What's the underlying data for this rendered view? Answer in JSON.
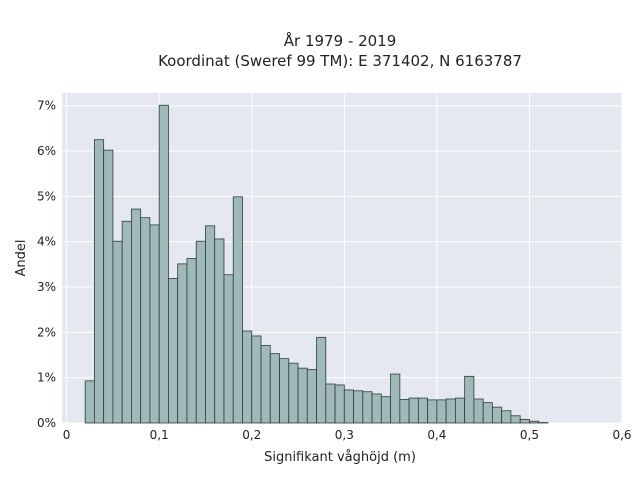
{
  "chart_data": {
    "type": "bar",
    "title_line1": "År 1979 - 2019",
    "title_line2": "Koordinat (Sweref 99 TM): E 371402, N 6163787",
    "xlabel": "Signifikant våghöjd (m)",
    "ylabel": "Andel",
    "xlim": [
      -0.005,
      0.6
    ],
    "ylim": [
      0,
      0.0728
    ],
    "grid": true,
    "bin_width": 0.01,
    "bin_start": 0.02,
    "values": [
      0.0093,
      0.0625,
      0.0602,
      0.0401,
      0.0445,
      0.0472,
      0.0453,
      0.0437,
      0.0701,
      0.0319,
      0.0351,
      0.0363,
      0.0401,
      0.0435,
      0.0406,
      0.0327,
      0.0499,
      0.0203,
      0.0192,
      0.0171,
      0.0153,
      0.0142,
      0.0132,
      0.0121,
      0.0118,
      0.0189,
      0.0086,
      0.0084,
      0.0073,
      0.0071,
      0.0069,
      0.0064,
      0.0058,
      0.0108,
      0.0052,
      0.0055,
      0.0055,
      0.0051,
      0.0051,
      0.0053,
      0.0055,
      0.0103,
      0.0053,
      0.0045,
      0.0035,
      0.0027,
      0.0016,
      0.0008,
      0.0004,
      0.0001
    ],
    "x_ticks": [
      {
        "value": 0,
        "label": "0"
      },
      {
        "value": 0.1,
        "label": "0,1"
      },
      {
        "value": 0.2,
        "label": "0,2"
      },
      {
        "value": 0.3,
        "label": "0,3"
      },
      {
        "value": 0.4,
        "label": "0,4"
      },
      {
        "value": 0.5,
        "label": "0,5"
      },
      {
        "value": 0.6,
        "label": "0,6"
      }
    ],
    "y_ticks": [
      {
        "value": 0,
        "label": "0%"
      },
      {
        "value": 0.01,
        "label": "1%"
      },
      {
        "value": 0.02,
        "label": "2%"
      },
      {
        "value": 0.03,
        "label": "3%"
      },
      {
        "value": 0.04,
        "label": "4%"
      },
      {
        "value": 0.05,
        "label": "5%"
      },
      {
        "value": 0.06,
        "label": "6%"
      },
      {
        "value": 0.07,
        "label": "7%"
      }
    ],
    "colors": {
      "plot_background": "#e5e8f0",
      "bar_fill": "#9eb9b8",
      "bar_stroke": "#2f3d3d",
      "grid": "#ffffff"
    }
  }
}
